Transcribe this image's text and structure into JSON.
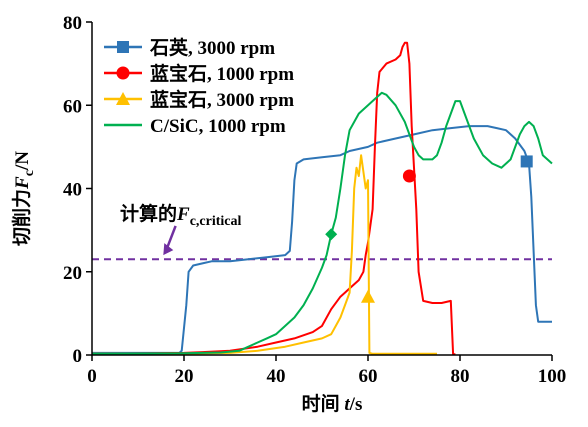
{
  "chart_data": {
    "type": "line",
    "xlabel_main": "时间",
    "xlabel_var": "t",
    "xlabel_unit": "/s",
    "ylabel_main": "切削力",
    "ylabel_var": "F",
    "ylabel_sub": "c",
    "ylabel_unit": "/N",
    "xlim": [
      0,
      100
    ],
    "ylim": [
      0,
      80
    ],
    "xticks": [
      0,
      20,
      40,
      60,
      80,
      100
    ],
    "yticks": [
      0,
      20,
      40,
      60,
      80
    ],
    "grid": false,
    "legend_position": "top-left",
    "reference_line": {
      "y": 23,
      "color": "#7030a0",
      "style": "dashed",
      "label_main": "计算的",
      "label_var": "F",
      "label_sub": "c,critical",
      "arrow_from": [
        16,
        31
      ],
      "arrow_to": [
        15.5,
        24
      ]
    },
    "series": [
      {
        "name": "石英, 3000 rpm",
        "color": "#2e75b6",
        "marker": "square",
        "marker_point": [
          94.5,
          46.5
        ],
        "points": [
          [
            0,
            0.5
          ],
          [
            19,
            0.5
          ],
          [
            19.5,
            1
          ],
          [
            20.5,
            12
          ],
          [
            21,
            20
          ],
          [
            22,
            21.5
          ],
          [
            24,
            22
          ],
          [
            26,
            22.5
          ],
          [
            30,
            22.5
          ],
          [
            34,
            23
          ],
          [
            38,
            23.5
          ],
          [
            42,
            24
          ],
          [
            43,
            25
          ],
          [
            43.5,
            32
          ],
          [
            44,
            42
          ],
          [
            44.5,
            46
          ],
          [
            46,
            47
          ],
          [
            50,
            47.5
          ],
          [
            54,
            48
          ],
          [
            56,
            49
          ],
          [
            60,
            50
          ],
          [
            62,
            51
          ],
          [
            66,
            52
          ],
          [
            70,
            53
          ],
          [
            74,
            54
          ],
          [
            78,
            54.5
          ],
          [
            82,
            55
          ],
          [
            86,
            55
          ],
          [
            88,
            54.5
          ],
          [
            90,
            54
          ],
          [
            92,
            52
          ],
          [
            94,
            49
          ],
          [
            95,
            46
          ],
          [
            95.5,
            38
          ],
          [
            96,
            25
          ],
          [
            96.5,
            12
          ],
          [
            97,
            8
          ],
          [
            98,
            8
          ],
          [
            100,
            8
          ]
        ]
      },
      {
        "name": "蓝宝石, 1000 rpm",
        "color": "#ff0000",
        "marker": "circle",
        "marker_point": [
          69,
          43
        ],
        "points": [
          [
            0,
            0.3
          ],
          [
            14,
            0.4
          ],
          [
            20,
            0.5
          ],
          [
            24,
            0.7
          ],
          [
            30,
            1
          ],
          [
            36,
            2
          ],
          [
            40,
            3
          ],
          [
            44,
            4
          ],
          [
            48,
            5.5
          ],
          [
            50,
            7
          ],
          [
            52,
            11
          ],
          [
            54,
            14
          ],
          [
            55,
            15
          ],
          [
            56,
            16
          ],
          [
            58,
            18
          ],
          [
            59,
            20
          ],
          [
            59.5,
            24
          ],
          [
            60,
            27
          ],
          [
            61,
            35
          ],
          [
            61.5,
            50
          ],
          [
            62,
            63
          ],
          [
            62.5,
            68
          ],
          [
            64,
            70
          ],
          [
            66,
            71
          ],
          [
            67,
            72
          ],
          [
            67.5,
            74
          ],
          [
            68,
            75
          ],
          [
            68.5,
            75
          ],
          [
            69,
            70
          ],
          [
            69.5,
            55
          ],
          [
            70,
            45
          ],
          [
            70.5,
            35
          ],
          [
            71,
            20
          ],
          [
            72,
            13
          ],
          [
            74,
            12.5
          ],
          [
            76,
            12.5
          ],
          [
            78,
            13
          ],
          [
            78.5,
            0.2
          ],
          [
            79,
            0.2
          ]
        ]
      },
      {
        "name": "蓝宝石, 3000 rpm",
        "color": "#ffc000",
        "marker": "triangle",
        "marker_point": [
          60,
          14
        ],
        "points": [
          [
            0,
            0.3
          ],
          [
            20,
            0.3
          ],
          [
            30,
            0.5
          ],
          [
            36,
            1
          ],
          [
            42,
            2
          ],
          [
            46,
            3
          ],
          [
            50,
            4
          ],
          [
            52,
            5
          ],
          [
            53,
            7
          ],
          [
            54,
            9
          ],
          [
            55,
            12
          ],
          [
            56,
            15
          ],
          [
            56.5,
            25
          ],
          [
            57,
            40
          ],
          [
            57.5,
            45
          ],
          [
            58,
            43
          ],
          [
            58.5,
            48
          ],
          [
            59,
            44
          ],
          [
            59.5,
            40
          ],
          [
            60,
            42
          ],
          [
            60.3,
            0.5
          ],
          [
            61,
            0.3
          ],
          [
            75,
            0.3
          ]
        ]
      },
      {
        "name": "C/SiC, 1000 rpm",
        "color": "#00b050",
        "marker": "diamond",
        "marker_point": [
          52,
          29
        ],
        "points": [
          [
            0,
            0.3
          ],
          [
            20,
            0.4
          ],
          [
            28,
            0.6
          ],
          [
            32,
            1
          ],
          [
            34,
            2
          ],
          [
            36,
            3
          ],
          [
            38,
            4
          ],
          [
            40,
            5
          ],
          [
            42,
            7
          ],
          [
            44,
            9
          ],
          [
            46,
            12
          ],
          [
            48,
            16
          ],
          [
            50,
            21
          ],
          [
            51,
            24
          ],
          [
            52,
            29
          ],
          [
            53,
            33
          ],
          [
            54,
            40
          ],
          [
            55,
            48
          ],
          [
            56,
            54
          ],
          [
            58,
            58
          ],
          [
            60,
            60
          ],
          [
            62,
            62
          ],
          [
            63,
            63
          ],
          [
            64,
            62.5
          ],
          [
            66,
            60
          ],
          [
            68,
            56
          ],
          [
            70,
            50
          ],
          [
            71,
            48
          ],
          [
            72,
            47
          ],
          [
            74,
            47
          ],
          [
            75,
            48
          ],
          [
            76,
            51
          ],
          [
            77,
            55
          ],
          [
            78,
            58
          ],
          [
            79,
            61
          ],
          [
            80,
            61
          ],
          [
            81,
            58
          ],
          [
            83,
            52
          ],
          [
            85,
            48
          ],
          [
            87,
            46
          ],
          [
            89,
            45
          ],
          [
            91,
            47
          ],
          [
            92,
            50
          ],
          [
            93,
            53
          ],
          [
            94,
            55
          ],
          [
            95,
            56
          ],
          [
            96,
            55
          ],
          [
            97,
            52
          ],
          [
            98,
            48
          ],
          [
            100,
            46
          ]
        ]
      }
    ]
  }
}
